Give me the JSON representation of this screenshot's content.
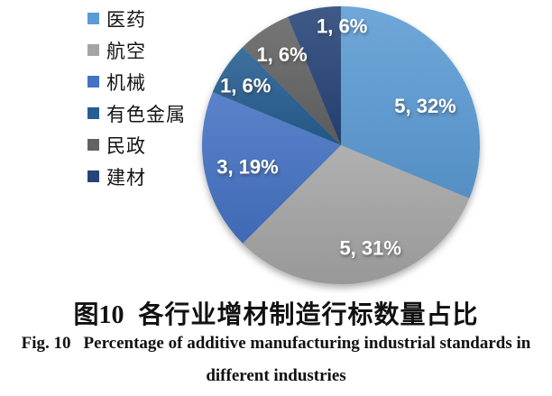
{
  "chart_data": {
    "type": "pie",
    "title": "各行业增材制造行标数量占比",
    "categories": [
      "医药",
      "航空",
      "机械",
      "有色金属",
      "民政",
      "建材"
    ],
    "values": [
      5,
      5,
      3,
      1,
      1,
      1
    ],
    "percent_labels": [
      32,
      31,
      19,
      6,
      6,
      6
    ],
    "data_labels": [
      "5, 32%",
      "5, 31%",
      "3, 19%",
      "1, 6%",
      "1, 6%",
      "1, 6%"
    ],
    "colors": [
      "#5B9BD5",
      "#A5A5A5",
      "#4472C4",
      "#255E91",
      "#636363",
      "#264478"
    ],
    "start_angle_deg": 0,
    "direction": "clockwise",
    "legend_position": "left",
    "data_label_color": "#FFFFFF",
    "label_layout": [
      {
        "angle": 65,
        "r_frac": 0.67
      },
      {
        "angle": 164,
        "r_frac": 0.77
      },
      {
        "angle": 257,
        "r_frac": 0.69
      },
      {
        "angle": 302,
        "r_frac": 0.81
      },
      {
        "angle": 327,
        "r_frac": 0.78
      },
      {
        "angle": 0.5,
        "r_frac": 0.86
      }
    ]
  },
  "caption": {
    "zh_prefix": "图10",
    "zh_title": "各行业增材制造行标数量占比",
    "en_prefix": "Fig. 10",
    "en_line1": "Percentage of additive manufacturing industrial standards in",
    "en_line2": "different industries"
  }
}
